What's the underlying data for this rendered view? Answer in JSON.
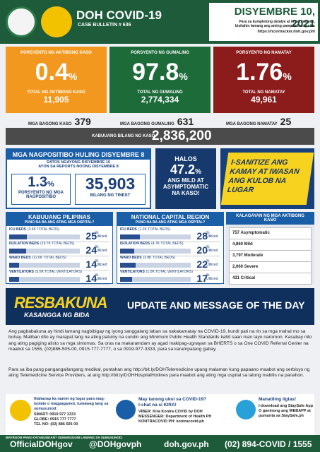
{
  "header": {
    "title": "DOH COVID-19",
    "bulletin": "CASE BULLETIN # 636",
    "date": "DISYEMBRE 10, 2021",
    "note": "Para sa kumpletong detalye at impormasyon, bisitahin lamang ang aming pampublikong site:",
    "url": "https://ncovtracker.doh.gov.ph/"
  },
  "stats": [
    {
      "label": "PORSYENTO NG AKTIBONG KASO",
      "pct": "0.4",
      "unit": "%",
      "sub": "TOTAL NG AKTIBONG KASO",
      "total": "11,905"
    },
    {
      "label": "PORSYENTO NG GUMALING",
      "pct": "97.8",
      "unit": "%",
      "sub": "TOTAL NG GUMALING",
      "total": "2,774,334"
    },
    {
      "label": "PORSYENTO NG NAMATAY",
      "pct": "1.76",
      "unit": "%",
      "sub": "TOTAL NG NAMATAY",
      "total": "49,961"
    }
  ],
  "new": [
    {
      "label": "MGA BAGONG KASO",
      "value": "379"
    },
    {
      "label": "MGA BAGONG GUMALING",
      "value": "631"
    },
    {
      "label": "MGA BAGONG NAMATAY",
      "value": "25"
    }
  ],
  "total": {
    "label": "KABUUANG BILANG NG KASO",
    "value": "2,836,200"
  },
  "positives": {
    "title": "MGA NAGPOSITIBO HULING DISYEMBRE 8",
    "sub1": "DATOS NGAYONG DISYEMBRE 10",
    "sub2": "AYON SA REPORTS NOONG DISYEMBRE 8",
    "rate": {
      "value": "1.3",
      "unit": "%",
      "label": "PORSYENTO NG MGA NAGPOSITIBO"
    },
    "tested": {
      "value": "35,903",
      "label": "BILANG NG TINEST"
    }
  },
  "asymptomatic": {
    "pre": "HALOS",
    "value": "47.2",
    "unit": "%",
    "text": "ANG MILD AT ASYMPTOMATIC NA KASO!"
  },
  "sanitize": {
    "text": "I-SANITIZE ANG KAMAY AT IWASAN ANG KULOB NA LUGAR"
  },
  "beds": {
    "unit": "%",
    "utilized": "Utilized",
    "panels": [
      {
        "title": "KABUUANG PILIPINAS",
        "subtitle": "PUNO NA BA ANG ATING MGA OSPITAL?",
        "rows": [
          {
            "label": "ICU BEDS",
            "total": "(3.6K TOTAL BEDS)",
            "value": 25
          },
          {
            "label": "ISOLATION BEDS",
            "total": "(19.7K TOTAL BEDS)",
            "value": 24
          },
          {
            "label": "WARD BEDS",
            "total": "(12.6K TOTAL BEDS)",
            "value": 14
          },
          {
            "label": "VENTILATORS",
            "total": "(3.0K TOTAL VENTILATORS)",
            "value": 14
          }
        ]
      },
      {
        "title": "NATIONAL CAPITAL REGION",
        "subtitle": "PUNO NA BA ANG ATING MGA OSPITAL?",
        "rows": [
          {
            "label": "ICU BEDS",
            "total": "(1.2K TOTAL BEDS)",
            "value": 28
          },
          {
            "label": "ISOLATION BEDS",
            "total": "(4.7K TOTAL BEDS)",
            "value": 20
          },
          {
            "label": "WARD BEDS",
            "total": "(3.8K TOTAL BEDS)",
            "value": 22
          },
          {
            "label": "VENTILATORS",
            "total": "(1.0K TOTAL VENTILATORS)",
            "value": 17
          }
        ]
      }
    ]
  },
  "status": {
    "title": "KALAGAYAN NG MGA AKTIBONG KASO",
    "items": [
      "757 Asymptomatic",
      "4,860 Mild",
      "3,797 Moderate",
      "2,060 Severe",
      "431 Critical"
    ]
  },
  "update": {
    "logo": "RESBAKUNA",
    "logo_sub": "KASANGGA NG BIDA",
    "title": "UPDATE AND MESSAGE OF THE DAY",
    "p1": "Ang pagbabakuna ay hindi lamang nagbibigay ng iyong sanggalang laban sa nakakamatay na COVID-19, kundi pati na rin sa mga mahal mo sa buhay. Maliban dito ay marapat lang na ating patuloy na sundin ang Minimum Public Health Standards kahit saan man tayo naroroon. Kasabay nito ang ating pagiging alisto sa mga sintomas. Sa oras na makaramdam ay agad makipag-ugnayan sa BHERTS o sa One COVID Referral Center na maabot sa 1555, (02)886-505-00, 0915-777-7777, o sa 0919-977-3333, para sa karampatang gabay.",
    "p2": "Para sa iba pang pangangailangang medikal, puntahan ang http://bit.ly/DOHTelemedicine upang malaman kung papaano maabot ang serbisyo ng ating Telemedicine Service Providers, at ang http://bit.ly/DOHHospitalHotlines para maabot ang ating mga ospital sa lalong mabilis na panahon."
  },
  "contacts": {
    "isolate": {
      "text": "Ihahanap ka namin ng lugar para mag-isolate o magpagamot, tumawag lang sa sumusunod:",
      "lines": [
        "SMART: 0919 977 3333",
        "GLOBE: 0915 777 7777",
        "TEL NO: (02) 886 505 00"
      ]
    },
    "kira": {
      "q": "May tanong ukol sa COVID-19?",
      "cta": "I-chat na si KIRA!",
      "lines": [
        "VIBER: Kira Kontra COVID by DOH",
        "MESSENGER: Department of Health PH",
        "KONTRACOVID PH: kontracovid.ph"
      ]
    },
    "staysafe": {
      "title": "Manatiling ligtas!",
      "lines": [
        "I-download ang StaySafe App",
        "O ganinong ang WEBAPP at pumunta sa StaySafe.ph"
      ]
    }
  },
  "footer": {
    "ask": "MAYROON PANG KATANUNGAN? SUMANGGUNI LAMANG SA SUMUSUNOD:",
    "facebook": "OfficialDOHgov",
    "twitter": "@DOHgovph",
    "web": "doh.gov.ph",
    "phone": "(02) 894-COVID / 1555"
  }
}
